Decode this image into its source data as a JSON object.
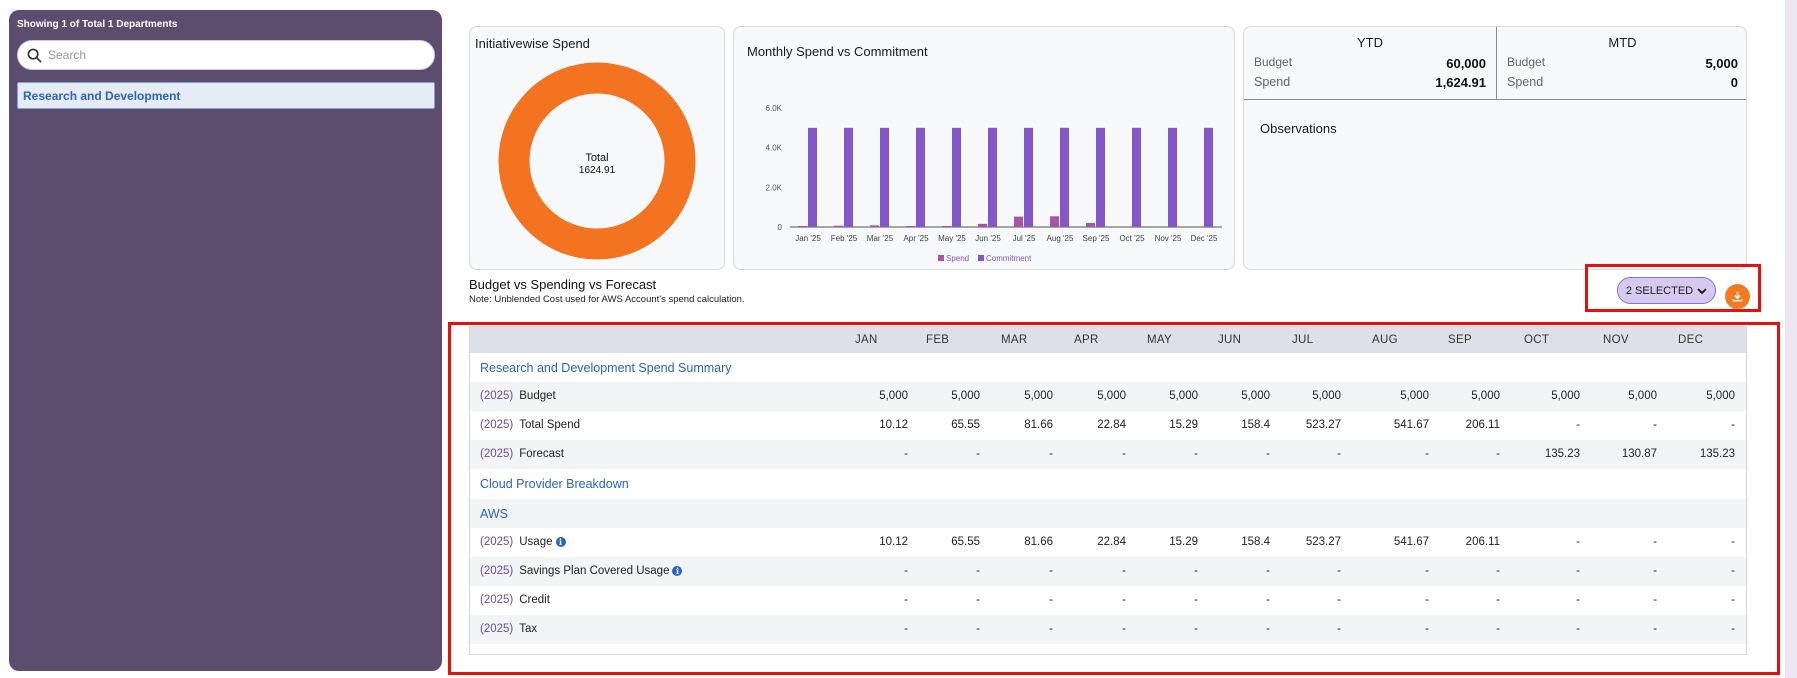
{
  "sidebar": {
    "title": "Showing 1 of Total 1 Departments",
    "search_placeholder": "Search",
    "items": [
      {
        "label": "Research and Development"
      }
    ]
  },
  "donut": {
    "title": "Initiativewise Spend",
    "center_label": "Total",
    "center_value": "1624.91",
    "color": "#f47320"
  },
  "chart_data": {
    "type": "bar",
    "title": "Monthly Spend vs Commitment",
    "categories": [
      "Jan '25",
      "Feb '25",
      "Mar '25",
      "Apr '25",
      "May '25",
      "Jun '25",
      "Jul '25",
      "Aug '25",
      "Sep '25",
      "Oct '25",
      "Nov '25",
      "Dec '25"
    ],
    "series": [
      {
        "name": "Spend",
        "color": "#a855a8",
        "values": [
          10.12,
          65.55,
          81.66,
          22.84,
          15.29,
          158.4,
          523.27,
          541.67,
          206.11,
          0,
          0,
          0
        ]
      },
      {
        "name": "Commitment",
        "color": "#8457c9",
        "values": [
          5000,
          5000,
          5000,
          5000,
          5000,
          5000,
          5000,
          5000,
          5000,
          5000,
          5000,
          5000
        ]
      }
    ],
    "yticks": [
      "0",
      "2.0K",
      "4.0K",
      "6.0K"
    ],
    "ylim": [
      0,
      6000
    ],
    "legend": "bottom",
    "grid": false
  },
  "kpi": {
    "ytd": {
      "title": "YTD",
      "budget_label": "Budget",
      "budget": "60,000",
      "spend_label": "Spend",
      "spend": "1,624.91"
    },
    "mtd": {
      "title": "MTD",
      "budget_label": "Budget",
      "budget": "5,000",
      "spend_label": "Spend",
      "spend": "0"
    },
    "observations_title": "Observations"
  },
  "section": {
    "title": "Budget vs Spending vs Forecast",
    "note": "Note: Unblended Cost used for AWS Account's spend calculation.",
    "selected_label": "2 SELECTED"
  },
  "table": {
    "months": [
      "JAN",
      "FEB",
      "MAR",
      "APR",
      "MAY",
      "JUN",
      "JUL",
      "AUG",
      "SEP",
      "OCT",
      "NOV",
      "DEC"
    ],
    "rows": [
      {
        "type": "group",
        "title": "Research and Development Spend Summary"
      },
      {
        "type": "data",
        "year": "(2025)",
        "label": "Budget",
        "info": false,
        "values": [
          "5,000",
          "5,000",
          "5,000",
          "5,000",
          "5,000",
          "5,000",
          "5,000",
          "5,000",
          "5,000",
          "5,000",
          "5,000",
          "5,000"
        ]
      },
      {
        "type": "data",
        "year": "(2025)",
        "label": "Total Spend",
        "info": false,
        "values": [
          "10.12",
          "65.55",
          "81.66",
          "22.84",
          "15.29",
          "158.4",
          "523.27",
          "541.67",
          "206.11",
          "-",
          "-",
          "-"
        ]
      },
      {
        "type": "data",
        "year": "(2025)",
        "label": "Forecast",
        "info": false,
        "values": [
          "-",
          "-",
          "-",
          "-",
          "-",
          "-",
          "-",
          "-",
          "-",
          "135.23",
          "130.87",
          "135.23"
        ]
      },
      {
        "type": "group",
        "title": "Cloud Provider Breakdown"
      },
      {
        "type": "group",
        "title": "AWS"
      },
      {
        "type": "data",
        "year": "(2025)",
        "label": "Usage",
        "info": true,
        "values": [
          "10.12",
          "65.55",
          "81.66",
          "22.84",
          "15.29",
          "158.4",
          "523.27",
          "541.67",
          "206.11",
          "-",
          "-",
          "-"
        ]
      },
      {
        "type": "data",
        "year": "(2025)",
        "label": "Savings Plan Covered Usage",
        "info": true,
        "values": [
          "-",
          "-",
          "-",
          "-",
          "-",
          "-",
          "-",
          "-",
          "-",
          "-",
          "-",
          "-"
        ]
      },
      {
        "type": "data",
        "year": "(2025)",
        "label": "Credit",
        "info": false,
        "values": [
          "-",
          "-",
          "-",
          "-",
          "-",
          "-",
          "-",
          "-",
          "-",
          "-",
          "-",
          "-"
        ]
      },
      {
        "type": "data",
        "year": "(2025)",
        "label": "Tax",
        "info": false,
        "values": [
          "-",
          "-",
          "-",
          "-",
          "-",
          "-",
          "-",
          "-",
          "-",
          "-",
          "-",
          "-"
        ]
      }
    ]
  }
}
